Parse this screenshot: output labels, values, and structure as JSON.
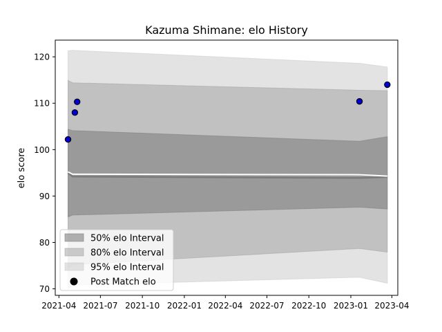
{
  "chart_data": {
    "type": "scatter",
    "title": "Kazuma Shimane: elo History",
    "xlabel": "",
    "ylabel": "elo score",
    "xlim": [
      "2021-03-24",
      "2023-04-14"
    ],
    "ylim": [
      68.6,
      123.6
    ],
    "x_ticks": [
      "2021-04",
      "2021-07",
      "2021-10",
      "2022-01",
      "2022-04",
      "2022-07",
      "2022-10",
      "2023-01",
      "2023-04"
    ],
    "y_ticks": [
      70,
      80,
      90,
      100,
      110,
      120
    ],
    "grid": false,
    "legend_position": "lower-left",
    "legend": [
      {
        "label": "50% elo Interval",
        "kind": "band",
        "color": "#808080",
        "alpha": 0.6
      },
      {
        "label": "80% elo Interval",
        "kind": "band",
        "color": "#a0a0a0",
        "alpha": 0.5
      },
      {
        "label": "95% elo Interval",
        "kind": "band",
        "color": "#c8c8c8",
        "alpha": 0.5
      },
      {
        "label": "Post Match elo",
        "kind": "marker",
        "color": "#000000"
      }
    ],
    "interval_dates": [
      "2021-04-21",
      "2021-05-01",
      "2023-01-20",
      "2023-03-22"
    ],
    "bands": [
      {
        "name": "95% elo Interval",
        "color": "#c8c8c8",
        "alpha": 0.5,
        "upper": [
          121.3,
          121.4,
          118.6,
          117.8
        ],
        "lower": [
          70.0,
          70.8,
          72.5,
          71.2
        ]
      },
      {
        "name": "80% elo Interval",
        "color": "#a0a0a0",
        "alpha": 0.5,
        "upper": [
          114.9,
          114.4,
          112.8,
          112.7
        ],
        "lower": [
          74.3,
          75.2,
          78.7,
          77.9
        ]
      },
      {
        "name": "50% elo Interval",
        "color": "#808080",
        "alpha": 0.6,
        "upper": [
          104.4,
          104.1,
          101.8,
          102.8
        ],
        "lower": [
          85.5,
          85.9,
          87.6,
          87.2
        ]
      }
    ],
    "mean_line": {
      "color": "#7a7a7a",
      "values": [
        95.0,
        94.2,
        93.9,
        94.1
      ]
    },
    "mean_line_upper": {
      "color": "#ffffff",
      "values": [
        95.2,
        94.7,
        94.6,
        94.3
      ]
    },
    "points": {
      "name": "Post Match elo",
      "color": "#0000cc",
      "edge_color": "#000000",
      "values": [
        {
          "x": "2021-04-21",
          "y": 102.2
        },
        {
          "x": "2021-05-06",
          "y": 108.0
        },
        {
          "x": "2021-05-11",
          "y": 110.3
        },
        {
          "x": "2023-01-20",
          "y": 110.4
        },
        {
          "x": "2023-03-22",
          "y": 114.0
        }
      ]
    }
  }
}
